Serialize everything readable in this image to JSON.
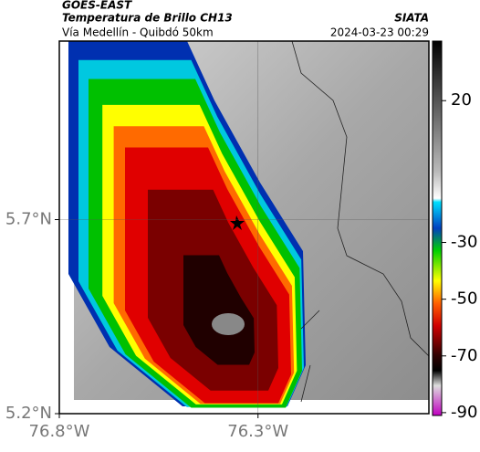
{
  "header": {
    "source": "GOES-EAST",
    "product": "Temperatura de Brillo CH13",
    "route": "Vía Medellín - Quibdó 50km",
    "org": "SIATA",
    "timestamp": "2024-03-23 00:29"
  },
  "map": {
    "xlim": [
      -76.8,
      -75.87
    ],
    "ylim": [
      5.2,
      6.16
    ],
    "xticks": [
      {
        "value": -76.8,
        "label": "76.8°W"
      },
      {
        "value": -76.3,
        "label": "76.3°W"
      }
    ],
    "yticks": [
      {
        "value": 5.7,
        "label": "5.7°N"
      },
      {
        "value": 5.2,
        "label": "5.2°N"
      }
    ]
  },
  "colorbar": {
    "range": [
      -91,
      41
    ],
    "ticks": [
      20,
      -30,
      -50,
      -70,
      -90
    ]
  }
}
